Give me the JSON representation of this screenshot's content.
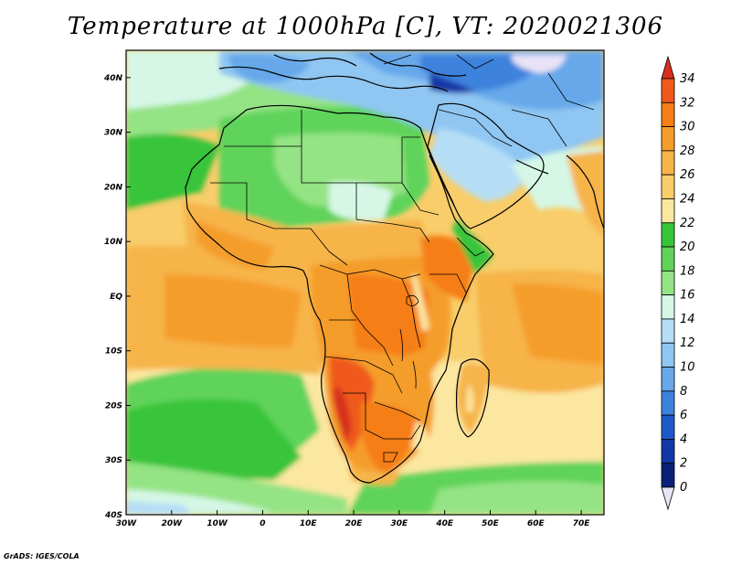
{
  "title": "Temperature at 1000hPa [C], VT: 2020021306",
  "credit": "GrADS: IGES/COLA",
  "map": {
    "projection": "latlon",
    "lon_range": [
      -30,
      75
    ],
    "lat_range": [
      -40,
      45
    ],
    "lon_ticks": [
      {
        "value": -30,
        "label": "30W"
      },
      {
        "value": -20,
        "label": "20W"
      },
      {
        "value": -10,
        "label": "10W"
      },
      {
        "value": 0,
        "label": "0"
      },
      {
        "value": 10,
        "label": "10E"
      },
      {
        "value": 20,
        "label": "20E"
      },
      {
        "value": 30,
        "label": "30E"
      },
      {
        "value": 40,
        "label": "40E"
      },
      {
        "value": 50,
        "label": "50E"
      },
      {
        "value": 60,
        "label": "60E"
      },
      {
        "value": 70,
        "label": "70E"
      }
    ],
    "lat_ticks": [
      {
        "value": 40,
        "label": "40N"
      },
      {
        "value": 30,
        "label": "30N"
      },
      {
        "value": 20,
        "label": "20N"
      },
      {
        "value": 10,
        "label": "10N"
      },
      {
        "value": 0,
        "label": "EQ"
      },
      {
        "value": -10,
        "label": "10S"
      },
      {
        "value": -20,
        "label": "20S"
      },
      {
        "value": -30,
        "label": "30S"
      },
      {
        "value": -40,
        "label": "40S"
      }
    ],
    "shaded_variable": "temperature_1000hPa_C"
  },
  "colorbar": {
    "labels": [
      "34",
      "32",
      "30",
      "28",
      "26",
      "24",
      "22",
      "20",
      "18",
      "16",
      "14",
      "12",
      "10",
      "8",
      "6",
      "4",
      "2",
      "0"
    ],
    "colors": [
      "#d7301f",
      "#ef5a1a",
      "#f57e16",
      "#f59d2a",
      "#f6b44a",
      "#f8cd6a",
      "#fbe7a0",
      "#37c43b",
      "#5fd35a",
      "#94e384",
      "#d6f7e6",
      "#b5def6",
      "#8fc6f2",
      "#66a8ea",
      "#3d82dc",
      "#1e59c8",
      "#1238a6",
      "#0b2078",
      "#e8e3f6"
    ]
  },
  "temperature_field": {
    "equatorial_africa": "28-32",
    "sahara": "14-20",
    "mediterranean_middle_east": "4-14",
    "south_atlantic_south": "16-22",
    "namibia_kalahari": "30-34"
  }
}
